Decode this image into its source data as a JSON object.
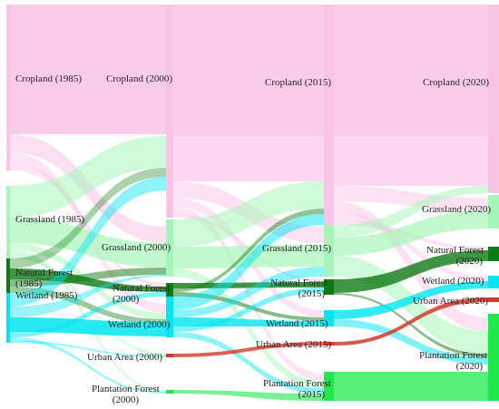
{
  "years": [
    "1985",
    "2000",
    "2015",
    "2020"
  ],
  "categories": {
    "cropland": {
      "color": "#f9c3e6"
    },
    "grassland": {
      "color": "#a6f5b8"
    },
    "natural_forest": {
      "color": "#0f7a14"
    },
    "wetland": {
      "color": "#00e5f0"
    },
    "urban": {
      "color": "#d23a2a"
    },
    "plantation": {
      "color": "#1ee84c"
    }
  },
  "labels": {
    "c1985": "Cropland (1985)",
    "g1985": "Grassland (1985)",
    "nf1985a": "Natural Forest",
    "nf1985b": "(1985)",
    "w1985": "Wetland (1985)",
    "c2000": "Cropland (2000)",
    "g2000": "Grassland (2000)",
    "nf2000a": "Natural Forest",
    "nf2000b": "(2000)",
    "w2000": "Wetland (2000)",
    "u2000": "Urban Area (2000)",
    "p2000a": "Plantation Forest",
    "p2000b": "(2000)",
    "c2015": "Cropland (2015)",
    "g2015": "Grassland (2015)",
    "nf2015a": "Natural Forest",
    "nf2015b": "(2015)",
    "w2015": "Wetland (2015)",
    "u2015": "Urban Area (2015)",
    "p2015a": "Plantation Forest",
    "p2015b": "(2015)",
    "c2020": "Cropland (2020)",
    "g2020": "Grassland (2020)",
    "nf2020a": "Natural Forest",
    "nf2020b": "(2020)",
    "w2020": "Wetland (2020)",
    "u2020": "Urban Area (2020)",
    "p2020a": "Plantation Forest",
    "p2020b": "(2020)"
  }
}
